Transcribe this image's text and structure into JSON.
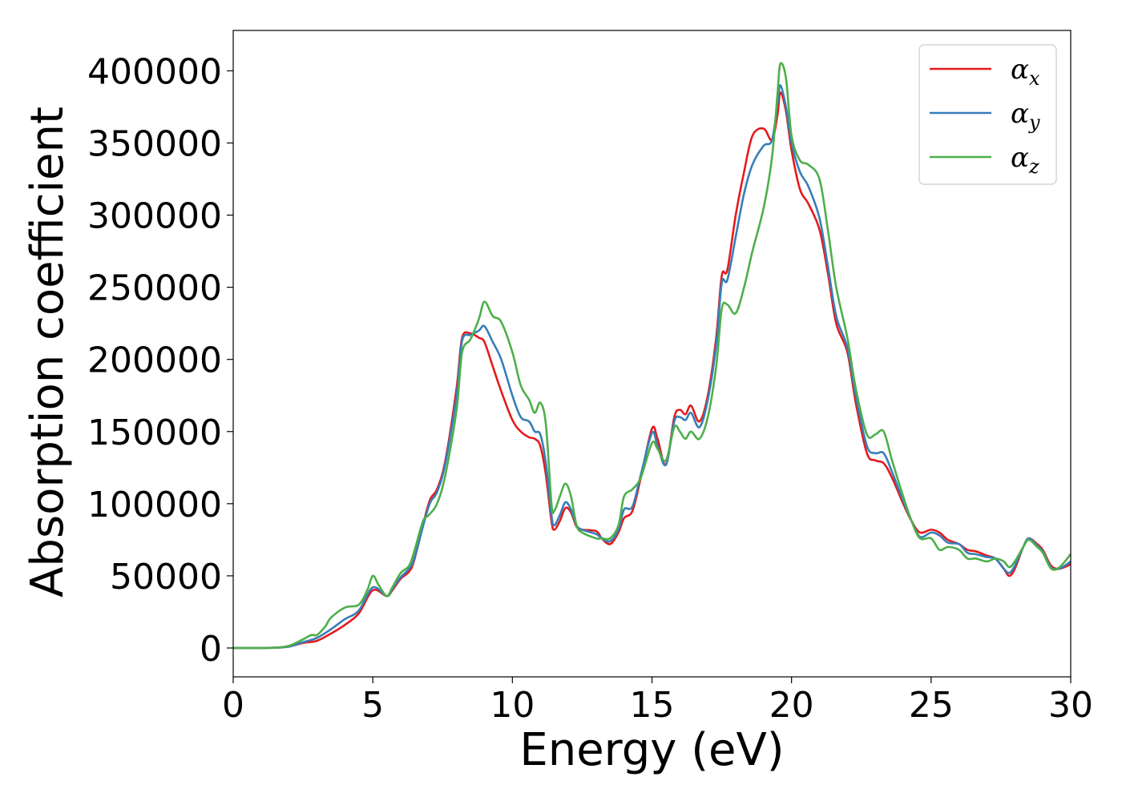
{
  "chart_data": {
    "type": "line",
    "title": "",
    "xlabel": "Energy (eV)",
    "ylabel": "Absorption coefficient",
    "xlim": [
      0,
      30
    ],
    "ylim": [
      -20000,
      428000
    ],
    "xticks": [
      0,
      5,
      10,
      15,
      20,
      25,
      30
    ],
    "yticks": [
      0,
      50000,
      100000,
      150000,
      200000,
      250000,
      300000,
      350000,
      400000
    ],
    "grid": false,
    "legend_position": "top-right",
    "series": [
      {
        "name": "α_x",
        "legend_symbol": "α",
        "legend_subscript": "x",
        "color": "#e41a1c",
        "points": [
          [
            0,
            0
          ],
          [
            1,
            0
          ],
          [
            1.5,
            200
          ],
          [
            2,
            1000
          ],
          [
            2.5,
            3500
          ],
          [
            3,
            5000
          ],
          [
            3.5,
            10000
          ],
          [
            4,
            16000
          ],
          [
            4.5,
            24000
          ],
          [
            5,
            40000
          ],
          [
            5.5,
            36000
          ],
          [
            5.7,
            40000
          ],
          [
            6,
            48000
          ],
          [
            6.3,
            53000
          ],
          [
            6.5,
            62000
          ],
          [
            7,
            100000
          ],
          [
            7.3,
            110000
          ],
          [
            7.6,
            130000
          ],
          [
            8,
            180000
          ],
          [
            8.2,
            215000
          ],
          [
            8.5,
            218000
          ],
          [
            8.8,
            215000
          ],
          [
            9,
            212000
          ],
          [
            9.3,
            195000
          ],
          [
            9.6,
            178000
          ],
          [
            10,
            158000
          ],
          [
            10.3,
            150000
          ],
          [
            10.6,
            146000
          ],
          [
            10.8,
            145000
          ],
          [
            11,
            140000
          ],
          [
            11.2,
            120000
          ],
          [
            11.4,
            88000
          ],
          [
            11.5,
            82000
          ],
          [
            11.7,
            88000
          ],
          [
            11.9,
            97000
          ],
          [
            12.1,
            94000
          ],
          [
            12.3,
            84000
          ],
          [
            12.5,
            82000
          ],
          [
            13,
            81000
          ],
          [
            13.2,
            76000
          ],
          [
            13.5,
            72000
          ],
          [
            13.8,
            80000
          ],
          [
            14,
            90000
          ],
          [
            14.3,
            95000
          ],
          [
            14.6,
            118000
          ],
          [
            15,
            152000
          ],
          [
            15.2,
            145000
          ],
          [
            15.5,
            127000
          ],
          [
            15.8,
            160000
          ],
          [
            16,
            165000
          ],
          [
            16.2,
            162000
          ],
          [
            16.4,
            168000
          ],
          [
            16.7,
            157000
          ],
          [
            17,
            175000
          ],
          [
            17.3,
            215000
          ],
          [
            17.5,
            258000
          ],
          [
            17.7,
            262000
          ],
          [
            18,
            300000
          ],
          [
            18.3,
            330000
          ],
          [
            18.6,
            355000
          ],
          [
            19,
            360000
          ],
          [
            19.3,
            352000
          ],
          [
            19.5,
            370000
          ],
          [
            19.6,
            385000
          ],
          [
            19.8,
            372000
          ],
          [
            20,
            345000
          ],
          [
            20.3,
            318000
          ],
          [
            20.6,
            308000
          ],
          [
            21,
            290000
          ],
          [
            21.3,
            260000
          ],
          [
            21.6,
            225000
          ],
          [
            22,
            205000
          ],
          [
            22.3,
            170000
          ],
          [
            22.7,
            135000
          ],
          [
            23,
            130000
          ],
          [
            23.3,
            128000
          ],
          [
            23.6,
            118000
          ],
          [
            24,
            100000
          ],
          [
            24.3,
            88000
          ],
          [
            24.6,
            80000
          ],
          [
            25,
            82000
          ],
          [
            25.3,
            80000
          ],
          [
            25.6,
            75000
          ],
          [
            26,
            72000
          ],
          [
            26.3,
            68000
          ],
          [
            26.6,
            67000
          ],
          [
            27,
            64000
          ],
          [
            27.3,
            62000
          ],
          [
            27.6,
            55000
          ],
          [
            27.8,
            50000
          ],
          [
            28,
            55000
          ],
          [
            28.3,
            70000
          ],
          [
            28.5,
            76000
          ],
          [
            28.8,
            72000
          ],
          [
            29,
            68000
          ],
          [
            29.3,
            57000
          ],
          [
            29.6,
            55000
          ],
          [
            30,
            58000
          ]
        ]
      },
      {
        "name": "α_y",
        "legend_symbol": "α",
        "legend_subscript": "y",
        "color": "#377eb8",
        "points": [
          [
            0,
            0
          ],
          [
            1,
            0
          ],
          [
            1.5,
            200
          ],
          [
            2,
            1000
          ],
          [
            2.5,
            4000
          ],
          [
            3,
            7000
          ],
          [
            3.5,
            13000
          ],
          [
            4,
            20000
          ],
          [
            4.5,
            26000
          ],
          [
            5,
            42000
          ],
          [
            5.5,
            36000
          ],
          [
            5.7,
            41000
          ],
          [
            6,
            49000
          ],
          [
            6.3,
            55000
          ],
          [
            6.5,
            63000
          ],
          [
            7,
            98000
          ],
          [
            7.3,
            108000
          ],
          [
            7.6,
            128000
          ],
          [
            8,
            175000
          ],
          [
            8.2,
            213000
          ],
          [
            8.5,
            217000
          ],
          [
            8.8,
            220000
          ],
          [
            9,
            223000
          ],
          [
            9.3,
            212000
          ],
          [
            9.6,
            200000
          ],
          [
            10,
            175000
          ],
          [
            10.3,
            160000
          ],
          [
            10.6,
            157000
          ],
          [
            10.8,
            150000
          ],
          [
            11,
            148000
          ],
          [
            11.2,
            128000
          ],
          [
            11.4,
            92000
          ],
          [
            11.5,
            85000
          ],
          [
            11.7,
            92000
          ],
          [
            11.9,
            101000
          ],
          [
            12.1,
            96000
          ],
          [
            12.3,
            85000
          ],
          [
            12.5,
            82000
          ],
          [
            13,
            79000
          ],
          [
            13.2,
            76000
          ],
          [
            13.5,
            74000
          ],
          [
            13.8,
            82000
          ],
          [
            14,
            96000
          ],
          [
            14.3,
            98000
          ],
          [
            14.6,
            120000
          ],
          [
            15,
            149000
          ],
          [
            15.2,
            140000
          ],
          [
            15.5,
            127000
          ],
          [
            15.8,
            157000
          ],
          [
            16,
            160000
          ],
          [
            16.2,
            158000
          ],
          [
            16.4,
            163000
          ],
          [
            16.7,
            153000
          ],
          [
            17,
            172000
          ],
          [
            17.3,
            210000
          ],
          [
            17.5,
            253000
          ],
          [
            17.7,
            255000
          ],
          [
            18,
            285000
          ],
          [
            18.3,
            315000
          ],
          [
            18.6,
            335000
          ],
          [
            19,
            348000
          ],
          [
            19.3,
            352000
          ],
          [
            19.5,
            378000
          ],
          [
            19.6,
            390000
          ],
          [
            19.8,
            375000
          ],
          [
            20,
            350000
          ],
          [
            20.3,
            330000
          ],
          [
            20.6,
            320000
          ],
          [
            21,
            298000
          ],
          [
            21.3,
            265000
          ],
          [
            21.6,
            230000
          ],
          [
            22,
            208000
          ],
          [
            22.3,
            175000
          ],
          [
            22.7,
            140000
          ],
          [
            23,
            135000
          ],
          [
            23.3,
            135000
          ],
          [
            23.6,
            122000
          ],
          [
            24,
            102000
          ],
          [
            24.3,
            88000
          ],
          [
            24.6,
            77000
          ],
          [
            25,
            80000
          ],
          [
            25.3,
            78000
          ],
          [
            25.6,
            73000
          ],
          [
            26,
            72000
          ],
          [
            26.3,
            66000
          ],
          [
            26.6,
            65000
          ],
          [
            27,
            63000
          ],
          [
            27.3,
            62000
          ],
          [
            27.6,
            55000
          ],
          [
            27.8,
            52000
          ],
          [
            28,
            57000
          ],
          [
            28.3,
            70000
          ],
          [
            28.5,
            76000
          ],
          [
            28.8,
            71000
          ],
          [
            29,
            67000
          ],
          [
            29.3,
            56000
          ],
          [
            29.6,
            55000
          ],
          [
            30,
            60000
          ]
        ]
      },
      {
        "name": "α_z",
        "legend_symbol": "α",
        "legend_subscript": "z",
        "color": "#4daf4a",
        "points": [
          [
            0,
            0
          ],
          [
            1,
            0
          ],
          [
            1.5,
            200
          ],
          [
            2,
            1500
          ],
          [
            2.5,
            6000
          ],
          [
            2.8,
            9000
          ],
          [
            3,
            9000
          ],
          [
            3.3,
            15000
          ],
          [
            3.5,
            21000
          ],
          [
            4,
            28000
          ],
          [
            4.5,
            30000
          ],
          [
            4.8,
            40000
          ],
          [
            5,
            50000
          ],
          [
            5.2,
            44000
          ],
          [
            5.5,
            36000
          ],
          [
            5.7,
            42000
          ],
          [
            6,
            52000
          ],
          [
            6.3,
            57000
          ],
          [
            6.5,
            68000
          ],
          [
            6.8,
            88000
          ],
          [
            7,
            92000
          ],
          [
            7.3,
            100000
          ],
          [
            7.6,
            120000
          ],
          [
            8,
            165000
          ],
          [
            8.2,
            205000
          ],
          [
            8.5,
            214000
          ],
          [
            8.8,
            228000
          ],
          [
            9,
            240000
          ],
          [
            9.3,
            230000
          ],
          [
            9.6,
            226000
          ],
          [
            10,
            205000
          ],
          [
            10.3,
            182000
          ],
          [
            10.6,
            172000
          ],
          [
            10.8,
            163000
          ],
          [
            11,
            170000
          ],
          [
            11.2,
            155000
          ],
          [
            11.4,
            100000
          ],
          [
            11.5,
            95000
          ],
          [
            11.7,
            105000
          ],
          [
            11.9,
            114000
          ],
          [
            12.1,
            105000
          ],
          [
            12.3,
            85000
          ],
          [
            12.5,
            80000
          ],
          [
            13,
            76000
          ],
          [
            13.2,
            76000
          ],
          [
            13.5,
            76000
          ],
          [
            13.8,
            85000
          ],
          [
            14,
            105000
          ],
          [
            14.3,
            110000
          ],
          [
            14.6,
            118000
          ],
          [
            15,
            142000
          ],
          [
            15.2,
            138000
          ],
          [
            15.5,
            130000
          ],
          [
            15.8,
            153000
          ],
          [
            16,
            150000
          ],
          [
            16.2,
            145000
          ],
          [
            16.4,
            150000
          ],
          [
            16.7,
            145000
          ],
          [
            17,
            160000
          ],
          [
            17.3,
            195000
          ],
          [
            17.5,
            235000
          ],
          [
            17.7,
            238000
          ],
          [
            18,
            232000
          ],
          [
            18.3,
            250000
          ],
          [
            18.6,
            275000
          ],
          [
            19,
            305000
          ],
          [
            19.3,
            340000
          ],
          [
            19.5,
            385000
          ],
          [
            19.6,
            405000
          ],
          [
            19.8,
            395000
          ],
          [
            20,
            355000
          ],
          [
            20.3,
            338000
          ],
          [
            20.6,
            335000
          ],
          [
            21,
            325000
          ],
          [
            21.3,
            290000
          ],
          [
            21.6,
            250000
          ],
          [
            22,
            215000
          ],
          [
            22.3,
            180000
          ],
          [
            22.7,
            148000
          ],
          [
            23,
            148000
          ],
          [
            23.3,
            150000
          ],
          [
            23.6,
            130000
          ],
          [
            24,
            105000
          ],
          [
            24.3,
            88000
          ],
          [
            24.6,
            76000
          ],
          [
            25,
            76000
          ],
          [
            25.3,
            68000
          ],
          [
            25.6,
            70000
          ],
          [
            26,
            68000
          ],
          [
            26.3,
            62000
          ],
          [
            26.6,
            62000
          ],
          [
            27,
            60000
          ],
          [
            27.3,
            62000
          ],
          [
            27.6,
            60000
          ],
          [
            27.8,
            56000
          ],
          [
            28,
            60000
          ],
          [
            28.3,
            70000
          ],
          [
            28.5,
            75000
          ],
          [
            28.8,
            70000
          ],
          [
            29,
            66000
          ],
          [
            29.3,
            55000
          ],
          [
            29.6,
            56000
          ],
          [
            30,
            65000
          ]
        ]
      }
    ]
  }
}
